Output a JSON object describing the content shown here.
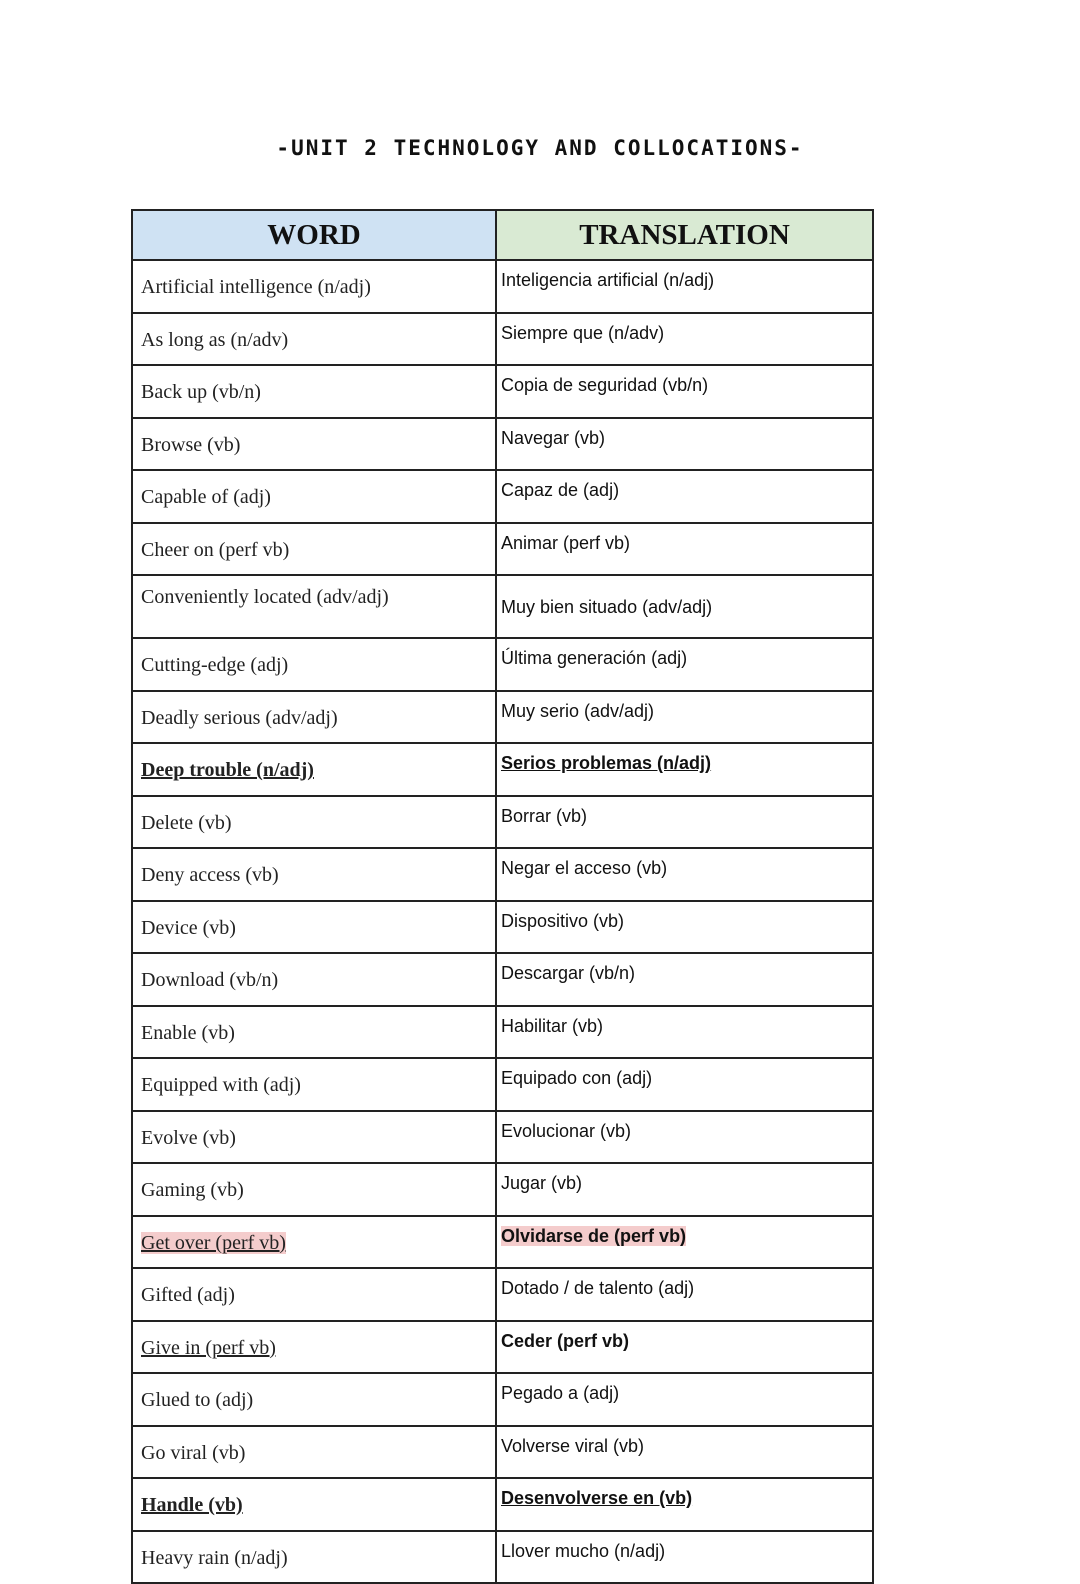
{
  "title": "-UNIT 2 TECHNOLOGY AND COLLOCATIONS-",
  "headers": {
    "word": "WORD",
    "translation": "TRANSLATION"
  },
  "header_colors": {
    "word": "#cfe2f3",
    "translation": "#d9ead3"
  },
  "highlight_color": "#f4cccc",
  "rows": [
    {
      "word": "Artificial intelligence (n/adj)",
      "translation": "Inteligencia artificial (n/adj)"
    },
    {
      "word": "As long as (n/adv)",
      "translation": "Siempre que  (n/adv)"
    },
    {
      "word": "Back up (vb/n)",
      "translation": "Copia de seguridad (vb/n)"
    },
    {
      "word": "Browse (vb)",
      "translation": "Navegar (vb)"
    },
    {
      "word": "Capable of (adj)",
      "translation": "Capaz de (adj)"
    },
    {
      "word": "Cheer on (perf vb)",
      "translation": "Animar (perf vb)"
    },
    {
      "word": "Conveniently located (adv/adj)",
      "translation": "Muy bien situado (adv/adj)",
      "tall": true
    },
    {
      "word": "Cutting-edge (adj)",
      "translation": "Última generación (adj)"
    },
    {
      "word": "Deadly serious (adv/adj)",
      "translation": "Muy serio (adv/adj)"
    },
    {
      "word": "Deep trouble (n/adj)",
      "translation": "Serios problemas (n/adj)",
      "word_style": "bold underline",
      "translation_style": "bold underline"
    },
    {
      "word": "Delete (vb)",
      "translation": "Borrar (vb)"
    },
    {
      "word": "Deny access (vb)",
      "translation": "Negar el acceso (vb)"
    },
    {
      "word": "Device (vb)",
      "translation": "Dispositivo (vb)"
    },
    {
      "word": "Download (vb/n)",
      "translation": "Descargar (vb/n)"
    },
    {
      "word": "Enable (vb)",
      "translation": "Habilitar (vb)"
    },
    {
      "word": "Equipped with (adj)",
      "translation": "Equipado con (adj)"
    },
    {
      "word": "Evolve (vb)",
      "translation": "Evolucionar (vb)"
    },
    {
      "word": "Gaming (vb)",
      "translation": "Jugar (vb)"
    },
    {
      "word": "Get over (perf vb)",
      "translation": "Olvidarse de (perf vb)",
      "word_style": "underline highlight",
      "translation_style": "bold highlight"
    },
    {
      "word": "Gifted (adj)",
      "translation": "Dotado / de talento (adj)"
    },
    {
      "word": "Give in (perf vb)",
      "translation": "Ceder (perf vb)",
      "word_style": "underline",
      "translation_style": "bold"
    },
    {
      "word": "Glued to (adj)",
      "translation": "Pegado a (adj)"
    },
    {
      "word": "Go viral (vb)",
      "translation": "Volverse viral (vb)"
    },
    {
      "word": "Handle (vb)",
      "translation": "Desenvolverse en (vb)",
      "word_style": "bold underline",
      "translation_style": "bold underline"
    },
    {
      "word": "Heavy rain (n/adj)",
      "translation": "Llover mucho (n/adj)"
    }
  ]
}
